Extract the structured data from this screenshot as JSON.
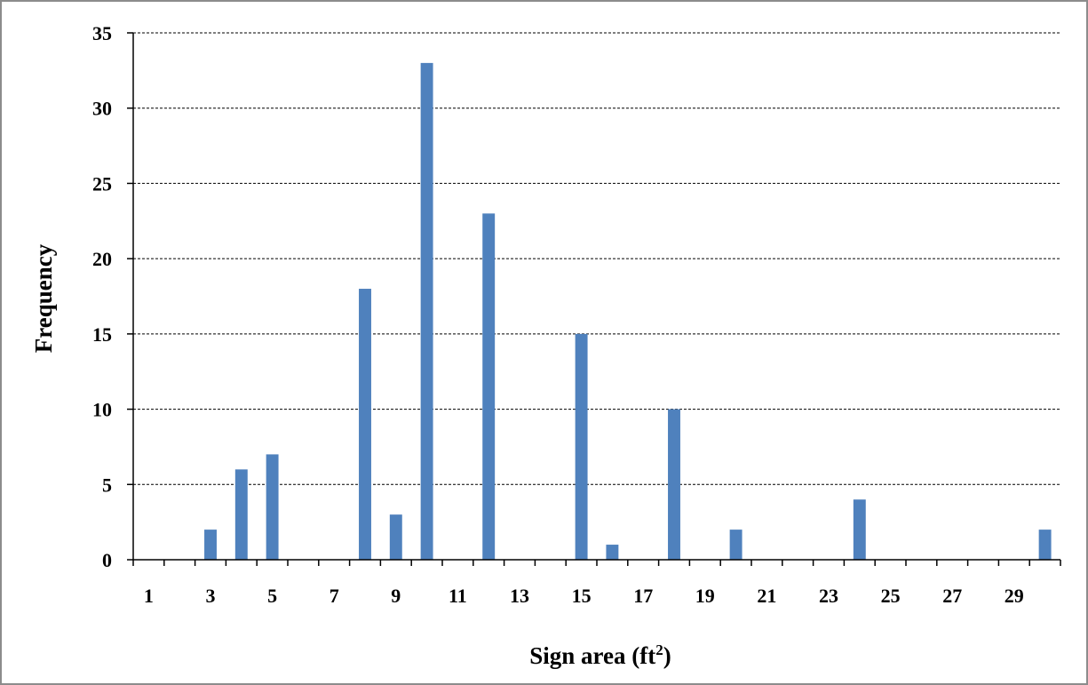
{
  "chart_data": {
    "type": "bar",
    "categories": [
      "1",
      "2",
      "3",
      "4",
      "5",
      "6",
      "7",
      "8",
      "9",
      "10",
      "11",
      "12",
      "13",
      "14",
      "15",
      "16",
      "17",
      "18",
      "19",
      "20",
      "21",
      "22",
      "23",
      "24",
      "25",
      "26",
      "27",
      "28",
      "29",
      "30"
    ],
    "tick_labels": [
      "1",
      "3",
      "5",
      "7",
      "9",
      "11",
      "13",
      "15",
      "17",
      "19",
      "21",
      "23",
      "25",
      "27",
      "29"
    ],
    "values": [
      0,
      0,
      2,
      6,
      7,
      0,
      0,
      18,
      3,
      33,
      0,
      23,
      0,
      0,
      15,
      1,
      0,
      10,
      0,
      2,
      0,
      0,
      0,
      4,
      0,
      0,
      0,
      0,
      0,
      2
    ],
    "ylim": [
      0,
      35
    ],
    "yticks": [
      0,
      5,
      10,
      15,
      20,
      25,
      30,
      35
    ],
    "xlabel_main": "Sign area (ft",
    "xlabel_sup": "2",
    "xlabel_end": ")",
    "ylabel": "Frequency",
    "grid": true,
    "bar_color": "#4f81bd",
    "grid_color": "#000000"
  }
}
